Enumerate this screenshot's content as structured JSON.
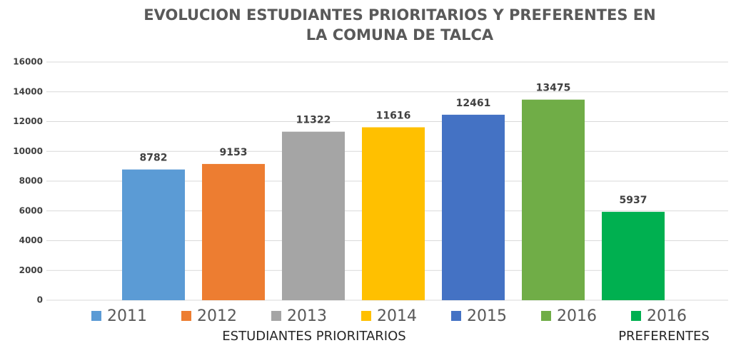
{
  "chart_data": {
    "type": "bar",
    "title": [
      "EVOLUCION ESTUDIANTES PRIORITARIOS Y PREFERENTES EN",
      "LA COMUNA DE TALCA"
    ],
    "categories": [
      "ESTUDIANTES PRIORITARIOS",
      "PREFERENTES"
    ],
    "series": [
      {
        "name": "2011",
        "color": "#5b9bd5",
        "values": [
          8782,
          null
        ]
      },
      {
        "name": "2012",
        "color": "#ed7d31",
        "values": [
          9153,
          null
        ]
      },
      {
        "name": "2013",
        "color": "#a5a5a5",
        "values": [
          11322,
          null
        ]
      },
      {
        "name": "2014",
        "color": "#ffc000",
        "values": [
          11616,
          null
        ]
      },
      {
        "name": "2015",
        "color": "#4472c4",
        "values": [
          12461,
          null
        ]
      },
      {
        "name": "2016",
        "color": "#70ad47",
        "values": [
          13475,
          null
        ]
      },
      {
        "name": "2016",
        "color": "#00b050",
        "values": [
          null,
          5937
        ]
      }
    ],
    "ylim": [
      0,
      16000
    ],
    "yticks": [
      0,
      2000,
      4000,
      6000,
      8000,
      10000,
      12000,
      14000,
      16000
    ],
    "grid": true,
    "legend": "bottom"
  }
}
